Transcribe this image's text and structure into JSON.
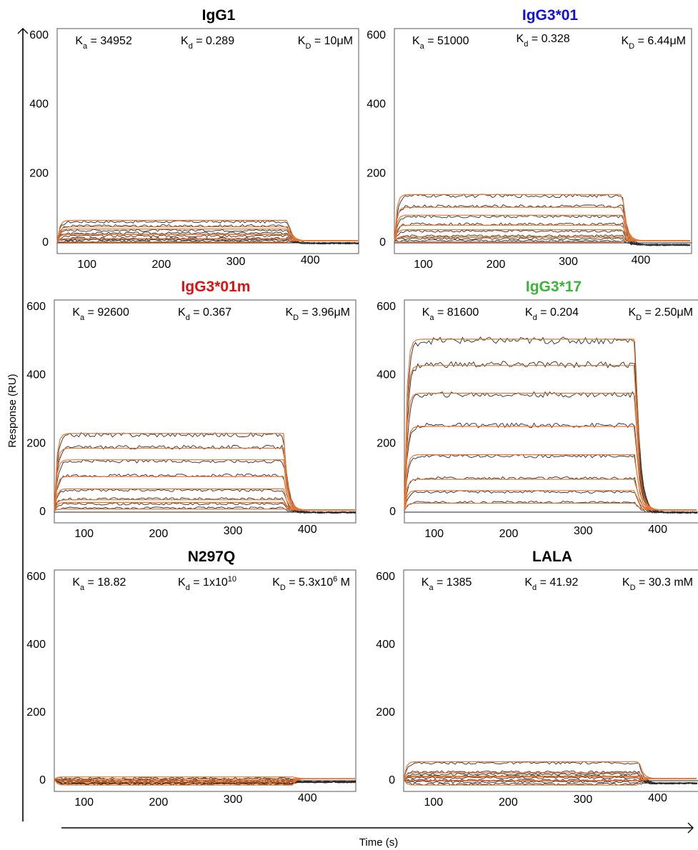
{
  "figure": {
    "ylabel": "Response (RU)",
    "xlabel": "Time (s)"
  },
  "colors": {
    "fit": "#E8742F",
    "data": "#2b2b2b",
    "axis": "#000000"
  },
  "chart_data": [
    {
      "type": "line",
      "title": "IgG1",
      "title_color": "#000000",
      "xlim": [
        60,
        465
      ],
      "ylim": [
        -20,
        600
      ],
      "xticks": [
        100,
        200,
        300,
        400
      ],
      "yticks": [
        0,
        200,
        400,
        600
      ],
      "kinetics": {
        "ka": "34952",
        "kd": "0.289",
        "KD": "10μM",
        "KD_sub": "D",
        "KD_sup": ""
      },
      "association": [
        60,
        370
      ],
      "levels": [
        57,
        45,
        32,
        24,
        16,
        9,
        4,
        1
      ],
      "dissociation_floor": -5,
      "annotations": [
        "K_a = 34952",
        "K_d = 0.289",
        "K_D = 10μM"
      ]
    },
    {
      "type": "line",
      "title": "IgG3*01",
      "title_color": "#1010E0",
      "xlim": [
        60,
        470
      ],
      "ylim": [
        -20,
        600
      ],
      "xticks": [
        100,
        200,
        300,
        400
      ],
      "yticks": [
        0,
        200,
        400,
        600
      ],
      "kinetics": {
        "ka": "51000",
        "kd": "0.328",
        "KD": "6.44μM",
        "KD_sub": "D",
        "KD_sup": ""
      },
      "association": [
        60,
        375
      ],
      "levels": [
        132,
        102,
        72,
        50,
        30,
        16,
        8,
        2
      ],
      "dissociation_floor": -10,
      "annotations": [
        "K_a = 51000",
        "K_d = 0.328",
        "K_D = 6.44μM"
      ]
    },
    {
      "type": "line",
      "title": "IgG3*01m",
      "title_color": "#E01010",
      "xlim": [
        60,
        465
      ],
      "ylim": [
        -20,
        600
      ],
      "xticks": [
        100,
        200,
        300,
        400
      ],
      "yticks": [
        0,
        200,
        400,
        600
      ],
      "kinetics": {
        "ka": "92600",
        "kd": "0.367",
        "KD": "3.96μM",
        "KD_sub": "D",
        "KD_sup": ""
      },
      "association": [
        60,
        368
      ],
      "levels": [
        222,
        186,
        145,
        103,
        60,
        35,
        20,
        8
      ],
      "dissociation_floor": -5,
      "annotations": [
        "K_a = 92600",
        "K_d = 0.367",
        "K_D = 3.96μM"
      ]
    },
    {
      "type": "line",
      "title": "IgG3*17",
      "title_color": "#3CB43C",
      "xlim": [
        60,
        455
      ],
      "ylim": [
        -20,
        600
      ],
      "xticks": [
        100,
        200,
        300,
        400
      ],
      "yticks": [
        0,
        200,
        400,
        600
      ],
      "kinetics": {
        "ka": "81600",
        "kd": "0.204",
        "KD": "2.50μM",
        "KD_sub": "D",
        "KD_sup": ""
      },
      "association": [
        60,
        370
      ],
      "levels": [
        498,
        428,
        340,
        250,
        160,
        95,
        55,
        25
      ],
      "dissociation_floor": -5,
      "annotations": [
        "K_a = 81600",
        "K_d = 0.204",
        "K_D = 2.50μM"
      ]
    },
    {
      "type": "line",
      "title": "N297Q",
      "title_color": "#000000",
      "xlim": [
        60,
        465
      ],
      "ylim": [
        -20,
        600
      ],
      "xticks": [
        100,
        200,
        300,
        400
      ],
      "yticks": [
        0,
        200,
        400,
        600
      ],
      "kinetics": {
        "ka": "18.82",
        "kd": "1x10",
        "kd_sup": "10",
        "KD": "5.3x10",
        "KD_sup": "6",
        "KD_tail": " M"
      },
      "association": [
        60,
        380
      ],
      "levels": [
        3,
        0,
        -3,
        -6,
        -8,
        -10,
        -12,
        -14
      ],
      "dissociation_floor": -8,
      "annotations": [
        "K_a = 18.82",
        "K_d = 1x10^10",
        "K_D = 5.3x10^6 M"
      ]
    },
    {
      "type": "line",
      "title": "LALA",
      "title_color": "#000000",
      "xlim": [
        60,
        455
      ],
      "ylim": [
        -20,
        600
      ],
      "xticks": [
        100,
        200,
        300,
        400
      ],
      "yticks": [
        0,
        200,
        400,
        600
      ],
      "kinetics": {
        "ka": "1385",
        "kd": "41.92",
        "KD": "30.3 mM",
        "KD_sub": "D",
        "KD_sup": ""
      },
      "association": [
        60,
        375
      ],
      "levels": [
        48,
        22,
        15,
        10,
        5,
        -2,
        -8,
        -14
      ],
      "dissociation_floor": -12,
      "annotations": [
        "K_a = 1385",
        "K_d = 41.92",
        "K_D = 30.3 mM"
      ]
    }
  ]
}
